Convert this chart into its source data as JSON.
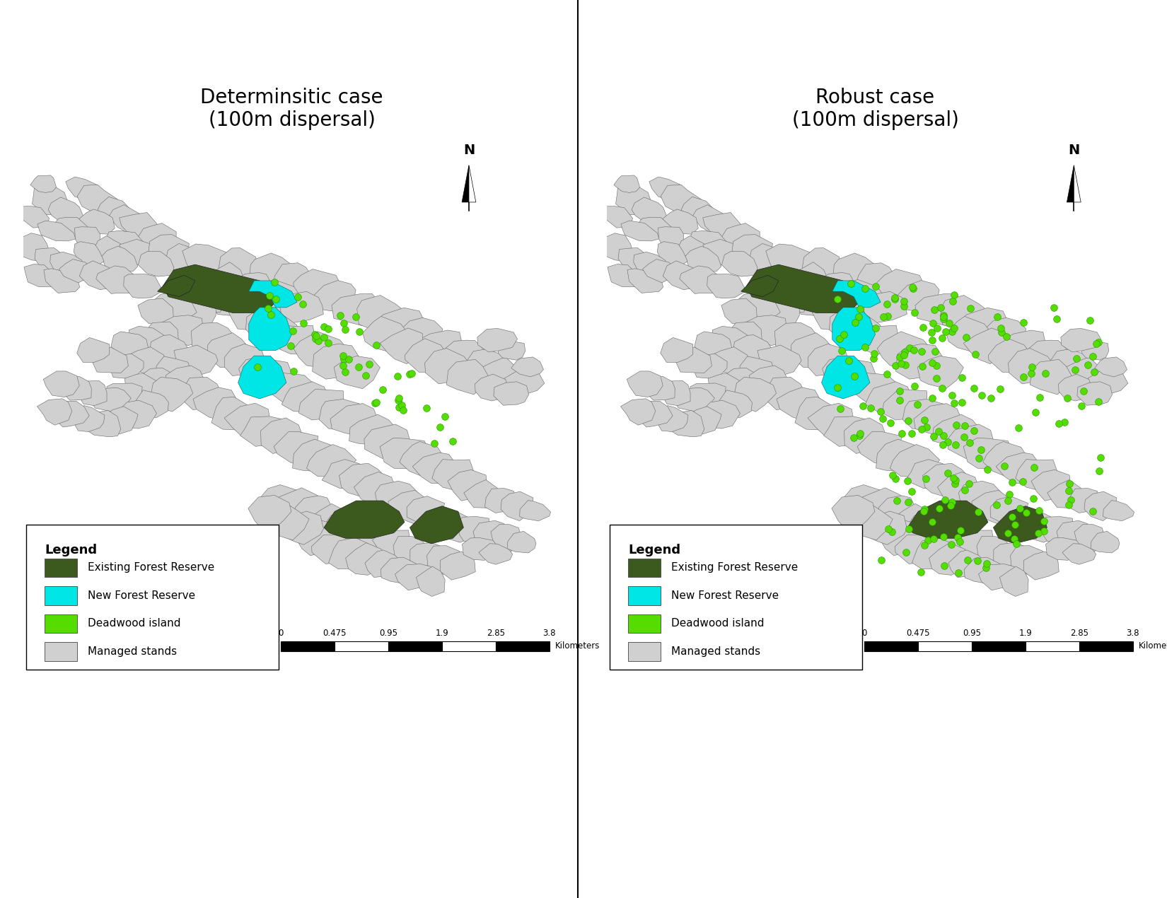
{
  "title_left": "Determinsitic case\n(100m dispersal)",
  "title_right": "Robust case\n(100m dispersal)",
  "bg_color": "#ffffff",
  "stand_color": "#d0d0d0",
  "stand_edge": "#666666",
  "forest_reserve_color": "#3d5a1e",
  "new_forest_color": "#00e5e5",
  "deadwood_color": "#55dd00",
  "legend_items": [
    {
      "label": "Existing Forest Reserve",
      "color": "#3d5a1e"
    },
    {
      "label": "New Forest Reserve",
      "color": "#00e5e5"
    },
    {
      "label": "Deadwood island",
      "color": "#55dd00"
    },
    {
      "label": "Managed stands",
      "color": "#d0d0d0"
    }
  ],
  "scale_labels": [
    "0",
    "0.475",
    "0.95",
    "1.9",
    "2.85",
    "3.8"
  ],
  "scale_unit": "Kilometers",
  "north_label": "N",
  "title_fontsize": 20,
  "legend_fontsize": 11,
  "legend_title_fontsize": 13
}
